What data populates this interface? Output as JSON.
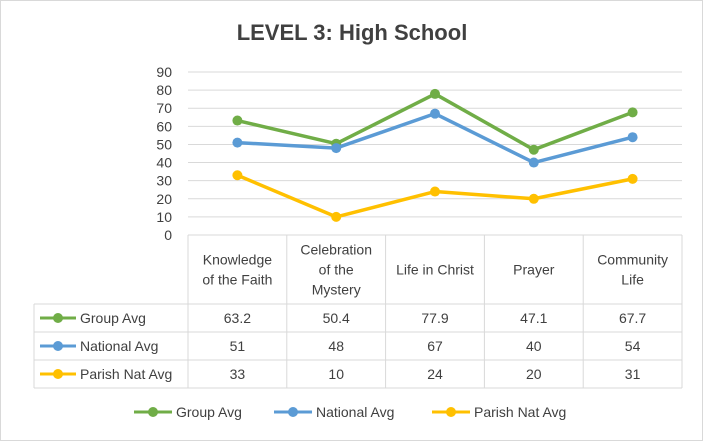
{
  "chart_data": {
    "type": "line",
    "title": "LEVEL 3: High School",
    "categories": [
      [
        "Knowledge",
        "of the Faith"
      ],
      [
        "Celebration",
        "of the",
        "Mystery"
      ],
      [
        "Life in Christ"
      ],
      [
        "Prayer"
      ],
      [
        "Community",
        "Life"
      ]
    ],
    "series": [
      {
        "name": "Group Avg",
        "color": "#70ad47",
        "values": [
          63.2,
          50.4,
          77.9,
          47.1,
          67.7
        ],
        "labels": [
          "63.2",
          "50.4",
          "77.9",
          "47.1",
          "67.7"
        ]
      },
      {
        "name": "National Avg",
        "color": "#5b9bd5",
        "values": [
          51,
          48,
          67,
          40,
          54
        ],
        "labels": [
          "51",
          "48",
          "67",
          "40",
          "54"
        ]
      },
      {
        "name": "Parish Nat Avg",
        "color": "#ffc000",
        "values": [
          33,
          10,
          24,
          20,
          31
        ],
        "labels": [
          "33",
          "10",
          "24",
          "20",
          "31"
        ]
      }
    ],
    "ylim": [
      0,
      90
    ],
    "ytick_step": 10,
    "grid": true,
    "data_table": true,
    "legend": "bottom"
  }
}
